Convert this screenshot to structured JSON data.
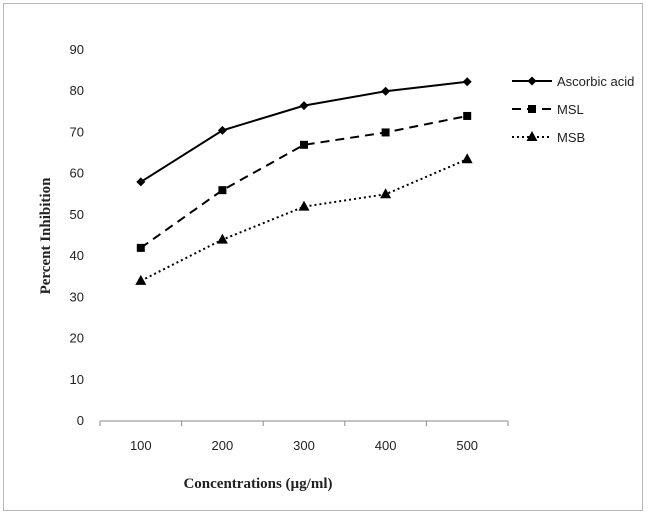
{
  "chart_data": {
    "type": "line",
    "title": "",
    "xlabel": "Concentrations (µg/ml)",
    "ylabel": "Percent Inhibition",
    "categories": [
      "100",
      "200",
      "300",
      "400",
      "500"
    ],
    "ylim": [
      0,
      90
    ],
    "yticks": [
      "0",
      "10",
      "20",
      "30",
      "40",
      "50",
      "60",
      "70",
      "80",
      "90"
    ],
    "grid": false,
    "legend_position": "right",
    "series": [
      {
        "name": "Ascorbic acid",
        "values": [
          58,
          70.5,
          76.5,
          80,
          82.3
        ],
        "style": "solid",
        "marker": "diamond",
        "color": "#000000"
      },
      {
        "name": "MSL",
        "values": [
          42,
          56,
          67,
          70,
          74
        ],
        "style": "dashed",
        "marker": "square",
        "color": "#000000"
      },
      {
        "name": "MSB",
        "values": [
          34,
          44,
          52,
          55,
          63.5
        ],
        "style": "dotted",
        "marker": "triangle",
        "color": "#000000"
      }
    ]
  }
}
